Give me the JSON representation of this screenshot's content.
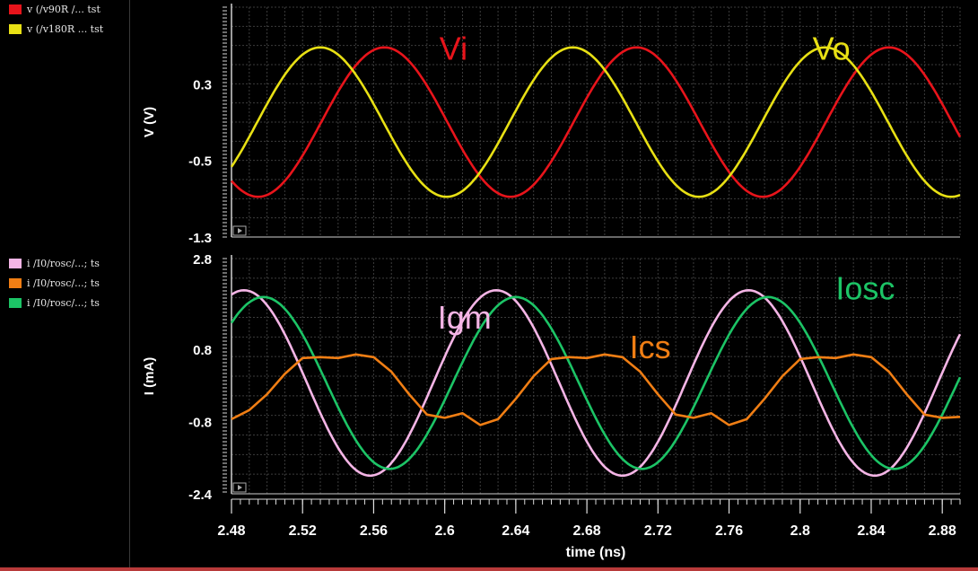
{
  "colors": {
    "vi": "#e8141b",
    "vo": "#e8e014",
    "igm": "#f5b5e6",
    "icsn": "#f07e14",
    "iosc": "#1cc466",
    "grid": "#3c3c3c",
    "frame": "#cfcfcf",
    "text": "#ffffff"
  },
  "legend_top": [
    {
      "label": "v (/v90R /... tst",
      "color": "#e8141b"
    },
    {
      "label": "v (/v180R ... tst",
      "color": "#e8e014"
    }
  ],
  "legend_bottom": [
    {
      "label": "i /I0/rosc/...; ts",
      "color": "#f5b5e6"
    },
    {
      "label": "i /I0/rosc/...; ts",
      "color": "#f07e14"
    },
    {
      "label": "i /I0/rosc/...; ts",
      "color": "#1cc466"
    }
  ],
  "chart_data": [
    {
      "type": "line",
      "ylabel": "V (V)",
      "ylim": [
        -1.3,
        1.1
      ],
      "yticks": [
        0.3,
        -0.5,
        -1.3
      ],
      "xlim": [
        2.48,
        2.89
      ],
      "grid": true,
      "annotations": [
        {
          "text": "Vi",
          "color": "#e8141b",
          "x": 2.597,
          "y": 0.55
        },
        {
          "text": "Vo",
          "color": "#e8e014",
          "x": 2.807,
          "y": 0.55
        }
      ],
      "series": [
        {
          "name": "Vi",
          "color": "#e8141b",
          "amplitude": 0.78,
          "offset": -0.1,
          "period": 0.142,
          "peak_at": 2.566
        },
        {
          "name": "Vo",
          "color": "#e8e014",
          "amplitude": 0.78,
          "offset": -0.1,
          "period": 0.142,
          "peak_at": 2.53
        }
      ]
    },
    {
      "type": "line",
      "xlabel": "time (ns)",
      "ylabel": "I (mA)",
      "ylim": [
        -2.4,
        2.8
      ],
      "yticks": [
        2.8,
        0.8,
        -0.8,
        -2.4
      ],
      "xlim": [
        2.48,
        2.89
      ],
      "xticks": [
        "2.48",
        "2.52",
        "2.56",
        "2.6",
        "2.64",
        "2.68",
        "2.72",
        "2.76",
        "2.8",
        "2.84",
        "2.88"
      ],
      "grid": true,
      "annotations": [
        {
          "text": "Igm",
          "color": "#f5b5e6",
          "x": 2.596,
          "y": 1.25
        },
        {
          "text": "Ics",
          "color": "#f07e14",
          "x": 2.704,
          "y": 0.6
        },
        {
          "text": "Iosc",
          "color": "#1cc466",
          "x": 2.82,
          "y": 1.9
        }
      ],
      "series": [
        {
          "name": "Igm",
          "color": "#f5b5e6",
          "amplitude": 2.05,
          "offset": 0.05,
          "period": 0.142,
          "peak_at": 2.629
        },
        {
          "name": "Iosc",
          "color": "#1cc466",
          "amplitude": 1.9,
          "offset": 0.05,
          "period": 0.142,
          "peak_at": 2.64
        },
        {
          "name": "Ics",
          "color": "#f07e14",
          "points": [
            [
              2.48,
              -0.75
            ],
            [
              2.49,
              -0.55
            ],
            [
              2.5,
              -0.2
            ],
            [
              2.51,
              0.25
            ],
            [
              2.52,
              0.6
            ],
            [
              2.53,
              0.62
            ],
            [
              2.54,
              0.6
            ],
            [
              2.55,
              0.68
            ],
            [
              2.56,
              0.62
            ],
            [
              2.57,
              0.3
            ],
            [
              2.58,
              -0.2
            ],
            [
              2.59,
              -0.65
            ],
            [
              2.6,
              -0.72
            ],
            [
              2.61,
              -0.62
            ],
            [
              2.62,
              -0.88
            ],
            [
              2.63,
              -0.75
            ],
            [
              2.64,
              -0.3
            ],
            [
              2.65,
              0.2
            ],
            [
              2.66,
              0.58
            ],
            [
              2.67,
              0.62
            ],
            [
              2.68,
              0.6
            ],
            [
              2.69,
              0.68
            ],
            [
              2.7,
              0.62
            ],
            [
              2.71,
              0.3
            ],
            [
              2.72,
              -0.2
            ],
            [
              2.73,
              -0.65
            ],
            [
              2.74,
              -0.72
            ],
            [
              2.75,
              -0.62
            ],
            [
              2.76,
              -0.88
            ],
            [
              2.77,
              -0.75
            ],
            [
              2.78,
              -0.3
            ],
            [
              2.79,
              0.2
            ],
            [
              2.8,
              0.58
            ],
            [
              2.81,
              0.62
            ],
            [
              2.82,
              0.6
            ],
            [
              2.83,
              0.68
            ],
            [
              2.84,
              0.62
            ],
            [
              2.85,
              0.3
            ],
            [
              2.86,
              -0.2
            ],
            [
              2.87,
              -0.65
            ],
            [
              2.88,
              -0.72
            ],
            [
              2.89,
              -0.7
            ]
          ]
        }
      ]
    }
  ]
}
